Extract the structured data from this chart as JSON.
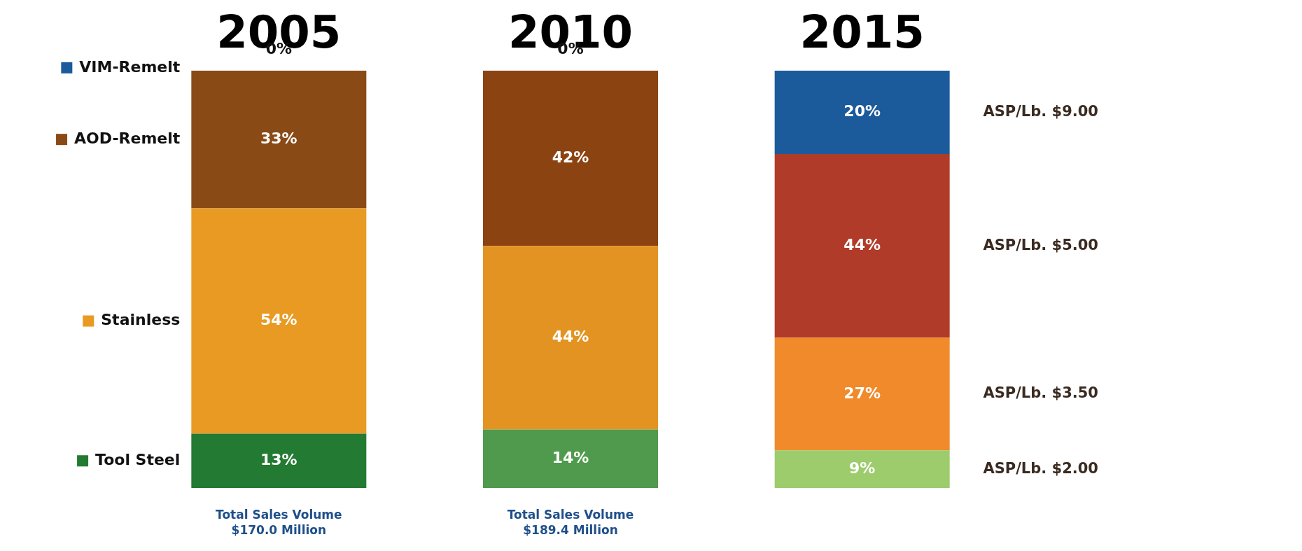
{
  "chart_data": {
    "type": "bar",
    "stacked": true,
    "categories": [
      "2005",
      "2010",
      "2015"
    ],
    "series": [
      {
        "name": "Tool Steel",
        "color": "#237a32",
        "colors": [
          "#237a32",
          "#4f9a4c",
          "#9dcc6c"
        ],
        "values": [
          13,
          14,
          9
        ],
        "value_labels": [
          "13%",
          "14%",
          "9%"
        ]
      },
      {
        "name": "Stainless",
        "color": "#e99a22",
        "colors": [
          "#e99a22",
          "#e39322",
          "#f08a2a"
        ],
        "values": [
          54,
          44,
          27
        ],
        "value_labels": [
          "54%",
          "44%",
          "27%"
        ]
      },
      {
        "name": "AOD-Remelt",
        "color": "#8a4a16",
        "colors": [
          "#8a4a16",
          "#8c4312",
          "#b03b29"
        ],
        "values": [
          33,
          42,
          44
        ],
        "value_labels": [
          "33%",
          "42%",
          "44%"
        ]
      },
      {
        "name": "VIM-Remelt",
        "color": "#1b5b9b",
        "colors": [
          "#6b3a10",
          "#6b3a10",
          "#1b5b9b"
        ],
        "values": [
          0,
          0,
          20
        ],
        "value_labels": [
          "0%",
          "0%",
          "20%"
        ]
      }
    ],
    "legend": "left",
    "annotations": [
      "Total Sales Volume\n$170.0 Million",
      "Total Sales Volume\n$189.4 Million",
      "ASP/Lb. $9.00",
      "ASP/Lb. $5.00",
      "ASP/Lb. $3.50",
      "ASP/Lb. $2.00"
    ]
  }
}
